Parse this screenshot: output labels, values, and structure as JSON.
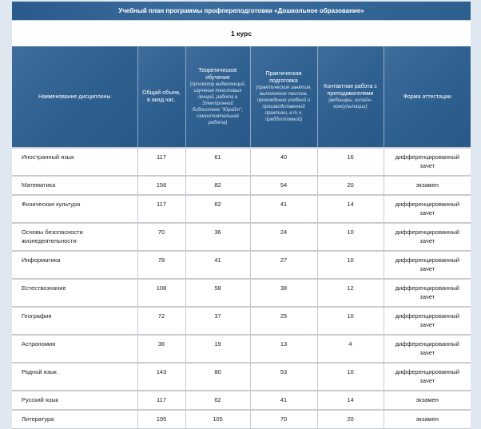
{
  "title": "Учебный план программы профпереподготовки «Дошкольное образование»",
  "course": "1 курс",
  "columns": [
    {
      "label": "Наименование дисциплины",
      "note": ""
    },
    {
      "label": "Общий объем, в акад.час.",
      "note": ""
    },
    {
      "label": "Теоретическое обучение",
      "note": "(просмотр видеолекций, изучение текстовых лекций, работа в Электронной библиотеке \"Юрайт\", самостоятельная работа)"
    },
    {
      "label": "Практическая подготовка",
      "note": "(практические занятия, выполнение тестов, прохождение учебной и производственной практики, в т.ч. преддипломной)"
    },
    {
      "label": "Контактная работа с преподавателями",
      "note": "(вебинары, онлайн-консультации)"
    },
    {
      "label": "Форма аттестации",
      "note": ""
    }
  ],
  "rows": [
    [
      "Иностранный язык",
      "117",
      "61",
      "40",
      "16",
      "дифференцированный зачет"
    ],
    [
      "Математика",
      "156",
      "82",
      "54",
      "20",
      "экзамен"
    ],
    [
      "Физическая культура",
      "117",
      "62",
      "41",
      "14",
      "дифференцированный зачет"
    ],
    [
      "Основы безопасности жизнедеятельности",
      "70",
      "36",
      "24",
      "10",
      "дифференцированный зачет"
    ],
    [
      "Информатика",
      "78",
      "41",
      "27",
      "10",
      "дифференцированный зачет"
    ],
    [
      "Естествознание",
      "108",
      "58",
      "38",
      "12",
      "дифференцированный зачет"
    ],
    [
      "География",
      "72",
      "37",
      "25",
      "10",
      "дифференцированный зачет"
    ],
    [
      "Астрономия",
      "36",
      "19",
      "13",
      "4",
      "дифференцированный зачет"
    ],
    [
      "Родной язык",
      "143",
      "80",
      "53",
      "10",
      "дифференцированный зачет"
    ],
    [
      "Русский язык",
      "117",
      "62",
      "41",
      "14",
      "экзамен"
    ],
    [
      "Литература",
      "195",
      "105",
      "70",
      "20",
      "экзамен"
    ]
  ]
}
